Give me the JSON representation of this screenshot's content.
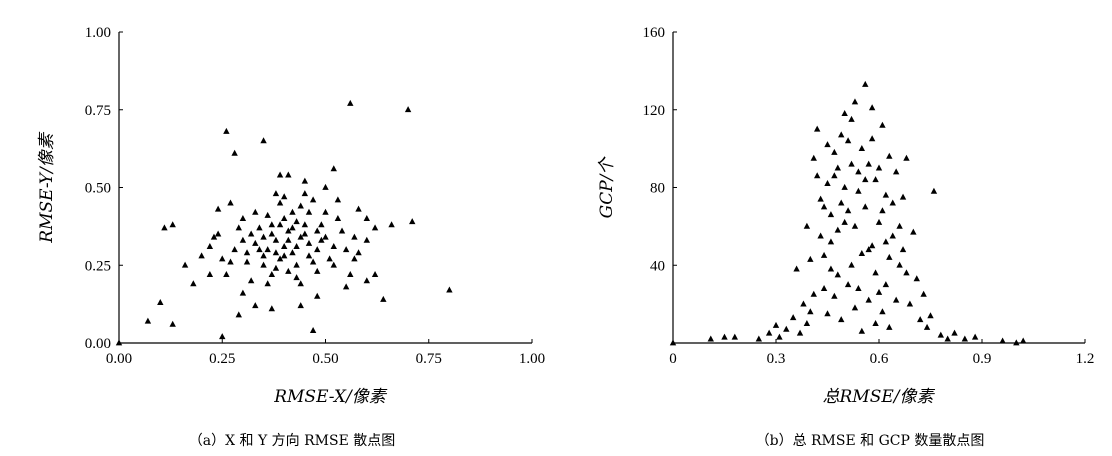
{
  "chart_data": [
    {
      "type": "scatter",
      "panel": "a",
      "marker": "triangle",
      "marker_color": "#000000",
      "xlabel": "RMSE-X/像素",
      "ylabel": "RMSE-Y/像素",
      "xlim": [
        0,
        1.0
      ],
      "ylim": [
        0,
        1.0
      ],
      "xticks": [
        "0.00",
        "0.25",
        "0.50",
        "0.75",
        "1.00"
      ],
      "yticks": [
        "0.00",
        "0.25",
        "0.50",
        "0.75",
        "1.00"
      ],
      "caption": "（a）X 和 Y 方向 RMSE 散点图",
      "grid": false,
      "points": [
        [
          0.0,
          0.0
        ],
        [
          0.07,
          0.07
        ],
        [
          0.1,
          0.13
        ],
        [
          0.11,
          0.37
        ],
        [
          0.13,
          0.06
        ],
        [
          0.13,
          0.38
        ],
        [
          0.16,
          0.25
        ],
        [
          0.18,
          0.19
        ],
        [
          0.2,
          0.28
        ],
        [
          0.22,
          0.22
        ],
        [
          0.23,
          0.34
        ],
        [
          0.24,
          0.43
        ],
        [
          0.25,
          0.02
        ],
        [
          0.26,
          0.68
        ],
        [
          0.28,
          0.61
        ],
        [
          0.27,
          0.26
        ],
        [
          0.29,
          0.09
        ],
        [
          0.3,
          0.16
        ],
        [
          0.3,
          0.4
        ],
        [
          0.33,
          0.12
        ],
        [
          0.35,
          0.65
        ],
        [
          0.37,
          0.11
        ],
        [
          0.38,
          0.48
        ],
        [
          0.39,
          0.54
        ],
        [
          0.41,
          0.54
        ],
        [
          0.45,
          0.52
        ],
        [
          0.47,
          0.04
        ],
        [
          0.5,
          0.5
        ],
        [
          0.52,
          0.56
        ],
        [
          0.56,
          0.77
        ],
        [
          0.58,
          0.43
        ],
        [
          0.6,
          0.33
        ],
        [
          0.62,
          0.22
        ],
        [
          0.64,
          0.14
        ],
        [
          0.66,
          0.38
        ],
        [
          0.7,
          0.75
        ],
        [
          0.71,
          0.39
        ],
        [
          0.8,
          0.17
        ],
        [
          0.6,
          0.2
        ],
        [
          0.55,
          0.18
        ],
        [
          0.48,
          0.15
        ],
        [
          0.44,
          0.12
        ],
        [
          0.32,
          0.2
        ],
        [
          0.22,
          0.31
        ],
        [
          0.27,
          0.45
        ],
        [
          0.53,
          0.46
        ],
        [
          0.62,
          0.37
        ],
        [
          0.57,
          0.27
        ],
        [
          0.36,
          0.3
        ],
        [
          0.38,
          0.33
        ],
        [
          0.4,
          0.31
        ],
        [
          0.42,
          0.29
        ],
        [
          0.44,
          0.34
        ],
        [
          0.41,
          0.36
        ],
        [
          0.39,
          0.27
        ],
        [
          0.43,
          0.25
        ],
        [
          0.46,
          0.32
        ],
        [
          0.37,
          0.35
        ],
        [
          0.35,
          0.28
        ],
        [
          0.45,
          0.38
        ],
        [
          0.48,
          0.3
        ],
        [
          0.4,
          0.4
        ],
        [
          0.33,
          0.32
        ],
        [
          0.5,
          0.34
        ],
        [
          0.42,
          0.42
        ],
        [
          0.38,
          0.24
        ],
        [
          0.47,
          0.26
        ],
        [
          0.34,
          0.37
        ],
        [
          0.49,
          0.38
        ],
        [
          0.36,
          0.41
        ],
        [
          0.44,
          0.44
        ],
        [
          0.31,
          0.29
        ],
        [
          0.52,
          0.31
        ],
        [
          0.43,
          0.21
        ],
        [
          0.39,
          0.45
        ],
        [
          0.46,
          0.42
        ],
        [
          0.32,
          0.35
        ],
        [
          0.51,
          0.27
        ],
        [
          0.41,
          0.23
        ],
        [
          0.37,
          0.22
        ],
        [
          0.48,
          0.23
        ],
        [
          0.35,
          0.25
        ],
        [
          0.54,
          0.36
        ],
        [
          0.3,
          0.33
        ],
        [
          0.45,
          0.48
        ],
        [
          0.4,
          0.47
        ],
        [
          0.53,
          0.4
        ],
        [
          0.28,
          0.3
        ],
        [
          0.33,
          0.42
        ],
        [
          0.47,
          0.46
        ],
        [
          0.55,
          0.3
        ],
        [
          0.36,
          0.19
        ],
        [
          0.44,
          0.19
        ],
        [
          0.42,
          0.37
        ],
        [
          0.39,
          0.38
        ],
        [
          0.5,
          0.42
        ],
        [
          0.34,
          0.3
        ],
        [
          0.43,
          0.31
        ],
        [
          0.46,
          0.28
        ],
        [
          0.38,
          0.29
        ],
        [
          0.41,
          0.33
        ],
        [
          0.49,
          0.33
        ],
        [
          0.37,
          0.38
        ],
        [
          0.45,
          0.35
        ],
        [
          0.4,
          0.28
        ],
        [
          0.35,
          0.34
        ],
        [
          0.48,
          0.36
        ],
        [
          0.43,
          0.39
        ],
        [
          0.31,
          0.26
        ],
        [
          0.52,
          0.25
        ],
        [
          0.57,
          0.34
        ],
        [
          0.29,
          0.37
        ],
        [
          0.25,
          0.27
        ],
        [
          0.58,
          0.29
        ],
        [
          0.24,
          0.35
        ],
        [
          0.6,
          0.4
        ],
        [
          0.26,
          0.22
        ],
        [
          0.56,
          0.22
        ]
      ]
    },
    {
      "type": "scatter",
      "panel": "b",
      "marker": "triangle",
      "marker_color": "#000000",
      "xlabel": "总RMSE/像素",
      "ylabel": "GCP/个",
      "xlim": [
        0,
        1.2
      ],
      "ylim": [
        0,
        160
      ],
      "xticks": [
        "0",
        "0.3",
        "0.6",
        "0.9",
        "1.2"
      ],
      "yticks": [
        "40",
        "80",
        "120",
        "160"
      ],
      "caption": "（b）总 RMSE 和 GCP 数量散点图",
      "grid": false,
      "points": [
        [
          0.0,
          0
        ],
        [
          0.11,
          2
        ],
        [
          0.15,
          3
        ],
        [
          0.18,
          3
        ],
        [
          0.25,
          2
        ],
        [
          0.28,
          5
        ],
        [
          0.3,
          9
        ],
        [
          0.31,
          3
        ],
        [
          0.33,
          7
        ],
        [
          0.35,
          13
        ],
        [
          0.36,
          38
        ],
        [
          0.37,
          5
        ],
        [
          0.38,
          20
        ],
        [
          0.39,
          60
        ],
        [
          0.4,
          43
        ],
        [
          0.41,
          95
        ],
        [
          0.42,
          110
        ],
        [
          0.43,
          74
        ],
        [
          0.44,
          28
        ],
        [
          0.45,
          102
        ],
        [
          0.46,
          52
        ],
        [
          0.47,
          86
        ],
        [
          0.48,
          35
        ],
        [
          0.49,
          107
        ],
        [
          0.5,
          118
        ],
        [
          0.51,
          68
        ],
        [
          0.52,
          92
        ],
        [
          0.53,
          124
        ],
        [
          0.54,
          78
        ],
        [
          0.55,
          100
        ],
        [
          0.56,
          133
        ],
        [
          0.57,
          48
        ],
        [
          0.58,
          121
        ],
        [
          0.59,
          84
        ],
        [
          0.6,
          62
        ],
        [
          0.61,
          112
        ],
        [
          0.62,
          30
        ],
        [
          0.63,
          96
        ],
        [
          0.64,
          55
        ],
        [
          0.65,
          88
        ],
        [
          0.66,
          40
        ],
        [
          0.67,
          75
        ],
        [
          0.68,
          95
        ],
        [
          0.69,
          20
        ],
        [
          0.7,
          57
        ],
        [
          0.71,
          33
        ],
        [
          0.72,
          12
        ],
        [
          0.73,
          25
        ],
        [
          0.74,
          8
        ],
        [
          0.75,
          14
        ],
        [
          0.76,
          78
        ],
        [
          0.78,
          4
        ],
        [
          0.8,
          2
        ],
        [
          0.82,
          5
        ],
        [
          0.85,
          2
        ],
        [
          0.88,
          3
        ],
        [
          0.96,
          1
        ],
        [
          1.0,
          0
        ],
        [
          1.02,
          1
        ],
        [
          0.44,
          45
        ],
        [
          0.46,
          66
        ],
        [
          0.48,
          58
        ],
        [
          0.5,
          80
        ],
        [
          0.52,
          40
        ],
        [
          0.54,
          88
        ],
        [
          0.56,
          70
        ],
        [
          0.58,
          50
        ],
        [
          0.6,
          90
        ],
        [
          0.62,
          76
        ],
        [
          0.45,
          15
        ],
        [
          0.47,
          24
        ],
        [
          0.49,
          12
        ],
        [
          0.51,
          30
        ],
        [
          0.53,
          18
        ],
        [
          0.55,
          6
        ],
        [
          0.57,
          22
        ],
        [
          0.59,
          10
        ],
        [
          0.61,
          16
        ],
        [
          0.63,
          8
        ],
        [
          0.43,
          55
        ],
        [
          0.45,
          82
        ],
        [
          0.47,
          98
        ],
        [
          0.49,
          72
        ],
        [
          0.51,
          104
        ],
        [
          0.53,
          60
        ],
        [
          0.55,
          46
        ],
        [
          0.57,
          92
        ],
        [
          0.59,
          36
        ],
        [
          0.61,
          68
        ],
        [
          0.42,
          86
        ],
        [
          0.44,
          70
        ],
        [
          0.46,
          38
        ],
        [
          0.48,
          90
        ],
        [
          0.5,
          62
        ],
        [
          0.52,
          115
        ],
        [
          0.54,
          28
        ],
        [
          0.56,
          84
        ],
        [
          0.58,
          105
        ],
        [
          0.6,
          26
        ],
        [
          0.64,
          72
        ],
        [
          0.66,
          60
        ],
        [
          0.65,
          22
        ],
        [
          0.67,
          48
        ],
        [
          0.68,
          36
        ],
        [
          0.62,
          52
        ],
        [
          0.63,
          44
        ],
        [
          0.4,
          16
        ],
        [
          0.41,
          25
        ],
        [
          0.39,
          10
        ]
      ]
    }
  ]
}
